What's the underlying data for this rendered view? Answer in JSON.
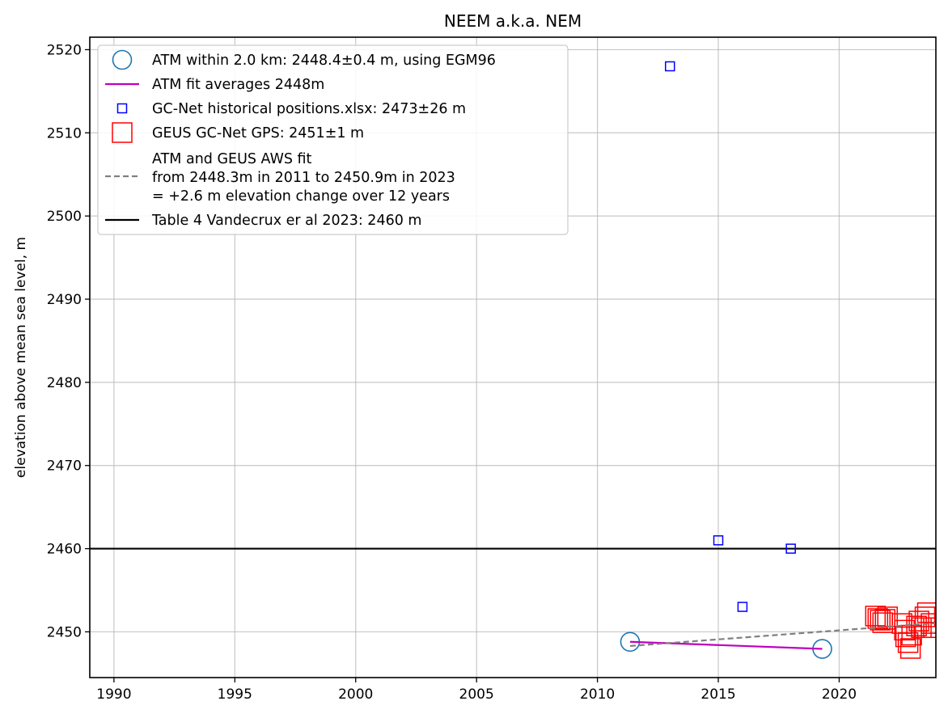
{
  "chart_data": {
    "type": "scatter",
    "title": "NEEM a.k.a. NEM",
    "xlabel": "",
    "ylabel": "elevation above mean sea level, m",
    "xlim": [
      1989,
      2024
    ],
    "ylim": [
      2444.5,
      2521.5
    ],
    "xticks": [
      1990,
      1995,
      2000,
      2005,
      2010,
      2015,
      2020
    ],
    "yticks": [
      2450,
      2460,
      2470,
      2480,
      2490,
      2500,
      2510,
      2520
    ],
    "grid": true,
    "legend_position": "top-left",
    "series": [
      {
        "name": "ATM within 2.0 km: 2448.4±0.4 m, using EGM96",
        "kind": "scatter",
        "marker": "circle",
        "color": "#1f77b4",
        "points": [
          [
            2011.35,
            2448.8
          ],
          [
            2019.3,
            2447.95
          ]
        ]
      },
      {
        "name": "ATM fit averages 2448m",
        "kind": "line",
        "color": "#bf00bf",
        "points": [
          [
            2011.35,
            2448.8
          ],
          [
            2019.3,
            2447.95
          ]
        ]
      },
      {
        "name": "GC-Net historical positions.xlsx: 2473±26 m",
        "kind": "scatter",
        "marker": "square-small",
        "color": "#0000ff",
        "points": [
          [
            2013.0,
            2518.0
          ],
          [
            2015.0,
            2461.0
          ],
          [
            2016.0,
            2453.0
          ],
          [
            2018.0,
            2460.0
          ]
        ]
      },
      {
        "name": "GEUS GC-Net GPS: 2451±1 m",
        "kind": "scatter",
        "marker": "square-large",
        "color": "#ff0000",
        "points": [
          [
            2021.5,
            2451.9
          ],
          [
            2021.6,
            2451.6
          ],
          [
            2021.7,
            2451.4
          ],
          [
            2021.8,
            2451.1
          ],
          [
            2021.9,
            2451.5
          ],
          [
            2022.0,
            2451.8
          ],
          [
            2022.6,
            2451.0
          ],
          [
            2022.7,
            2450.2
          ],
          [
            2022.75,
            2449.4
          ],
          [
            2022.85,
            2448.7
          ],
          [
            2022.95,
            2448.0
          ],
          [
            2023.0,
            2449.6
          ],
          [
            2023.2,
            2450.7
          ],
          [
            2023.3,
            2451.3
          ],
          [
            2023.4,
            2450.5
          ],
          [
            2023.55,
            2451.8
          ],
          [
            2023.65,
            2452.3
          ],
          [
            2023.8,
            2451.0
          ],
          [
            2023.9,
            2450.5
          ]
        ]
      },
      {
        "name": "ATM and GEUS AWS fit\nfrom 2448.3m in 2011 to 2450.9m in 2023\n= +2.6 m elevation change over 12 years",
        "kind": "line",
        "dash": true,
        "color": "#808080",
        "points": [
          [
            2011.35,
            2448.3
          ],
          [
            2024.0,
            2451.05
          ]
        ]
      },
      {
        "name": "Table 4 Vandecrux er al 2023: 2460 m",
        "kind": "hline",
        "color": "#000000",
        "y": 2460
      }
    ]
  }
}
